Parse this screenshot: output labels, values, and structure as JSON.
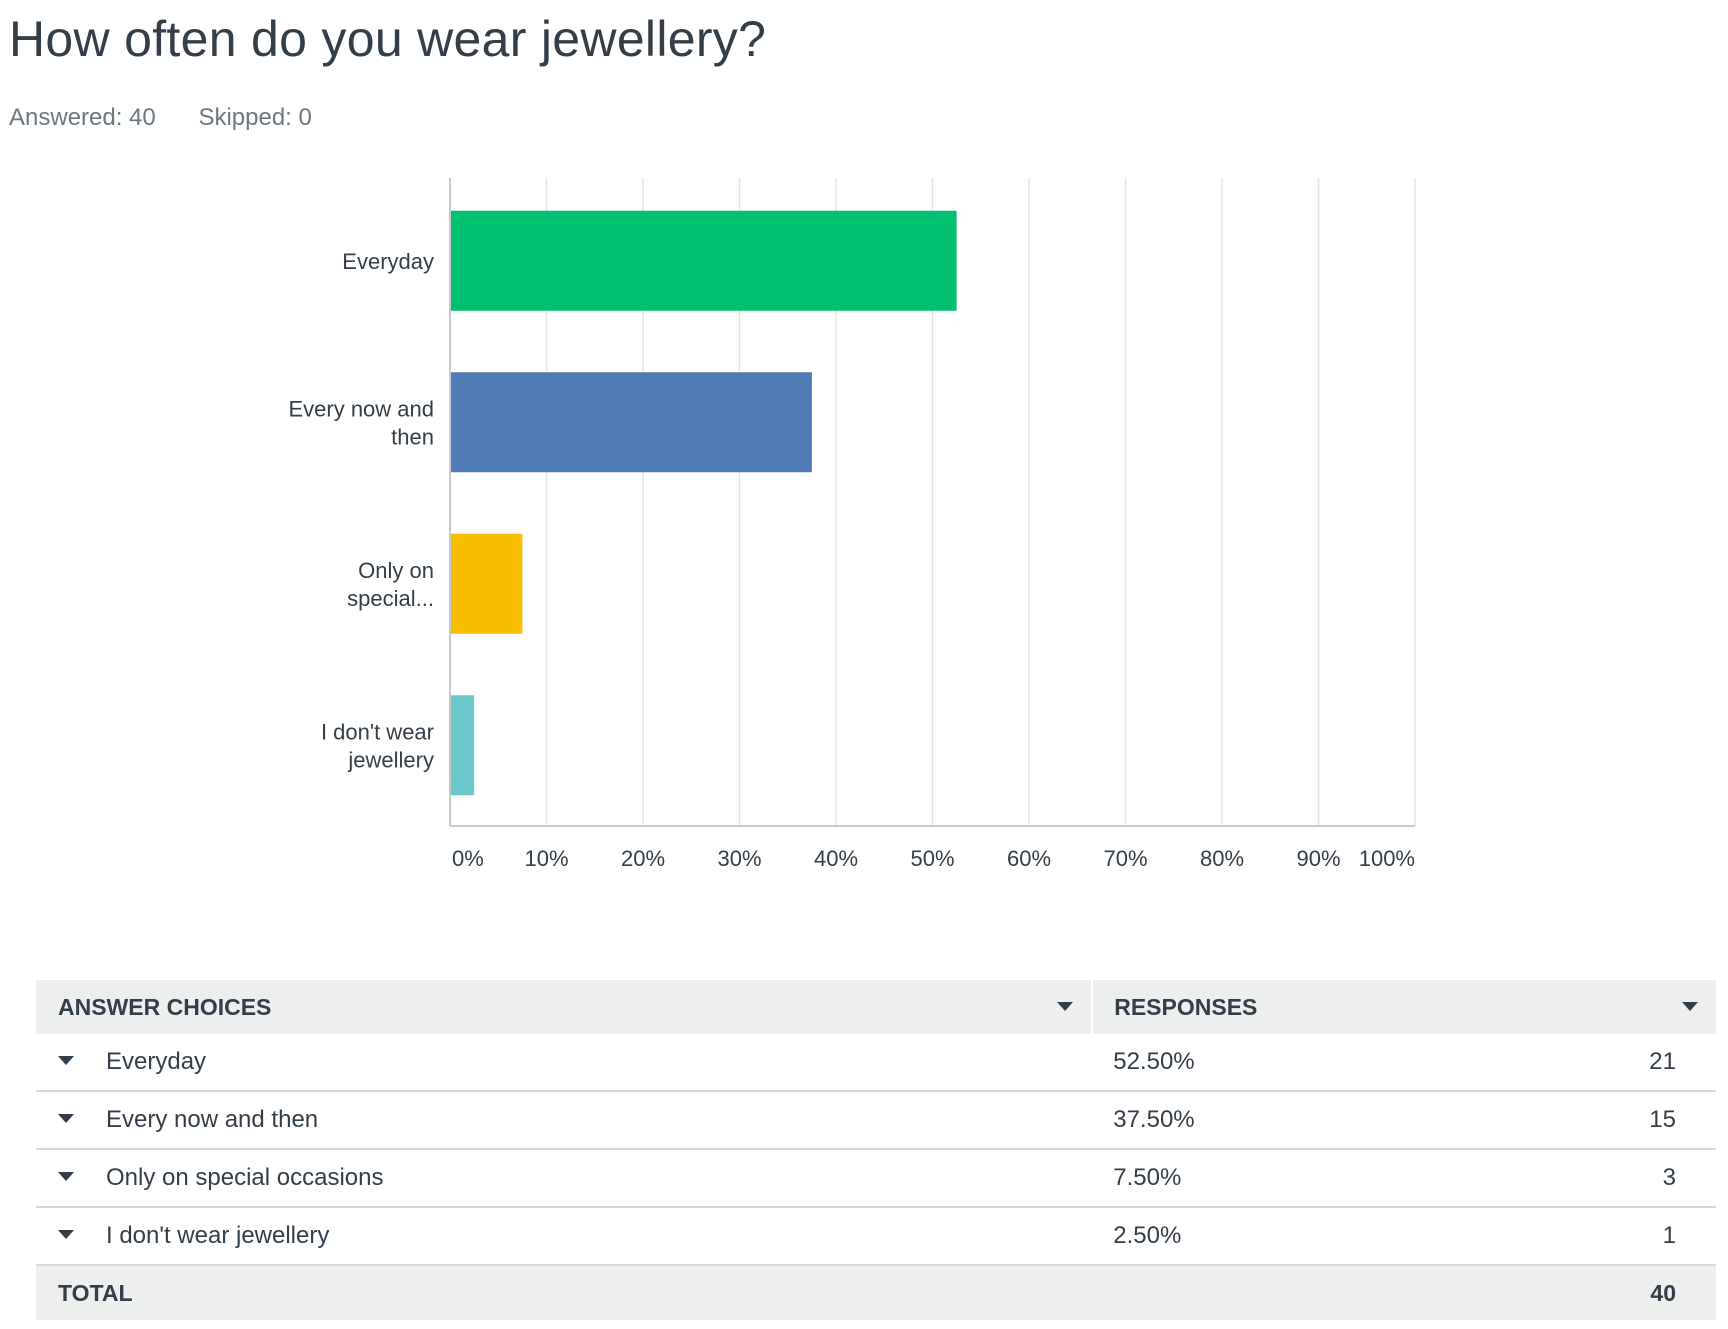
{
  "question": {
    "title": "How often do you wear jewellery?",
    "answered": "Answered: 40",
    "skipped": "Skipped: 0"
  },
  "chart_data": {
    "type": "bar",
    "orientation": "horizontal",
    "categories": [
      "Everyday",
      "Every now and then",
      "Only on special occasions",
      "I don't wear jewellery"
    ],
    "category_labels_shown": [
      [
        "Everyday"
      ],
      [
        "Every now and",
        "then"
      ],
      [
        "Only on",
        "special..."
      ],
      [
        "I don't wear",
        "jewellery"
      ]
    ],
    "values": [
      52.5,
      37.5,
      7.5,
      2.5
    ],
    "colors": [
      "#00bf6f",
      "#507cb6",
      "#f9be00",
      "#6bc8cd"
    ],
    "xlim": [
      0,
      100
    ],
    "x_ticks": [
      "0%",
      "10%",
      "20%",
      "30%",
      "40%",
      "50%",
      "60%",
      "70%",
      "80%",
      "90%",
      "100%"
    ],
    "grid": true,
    "title": "",
    "xlabel": "",
    "ylabel": ""
  },
  "table": {
    "header_choices": "ANSWER CHOICES",
    "header_responses": "RESPONSES",
    "rows": [
      {
        "choice": "Everyday",
        "percent": "52.50%",
        "count": "21"
      },
      {
        "choice": "Every now and then",
        "percent": "37.50%",
        "count": "15"
      },
      {
        "choice": "Only on special occasions",
        "percent": "7.50%",
        "count": "3"
      },
      {
        "choice": "I don't wear jewellery",
        "percent": "2.50%",
        "count": "1"
      }
    ],
    "total_label": "TOTAL",
    "total_count": "40"
  }
}
